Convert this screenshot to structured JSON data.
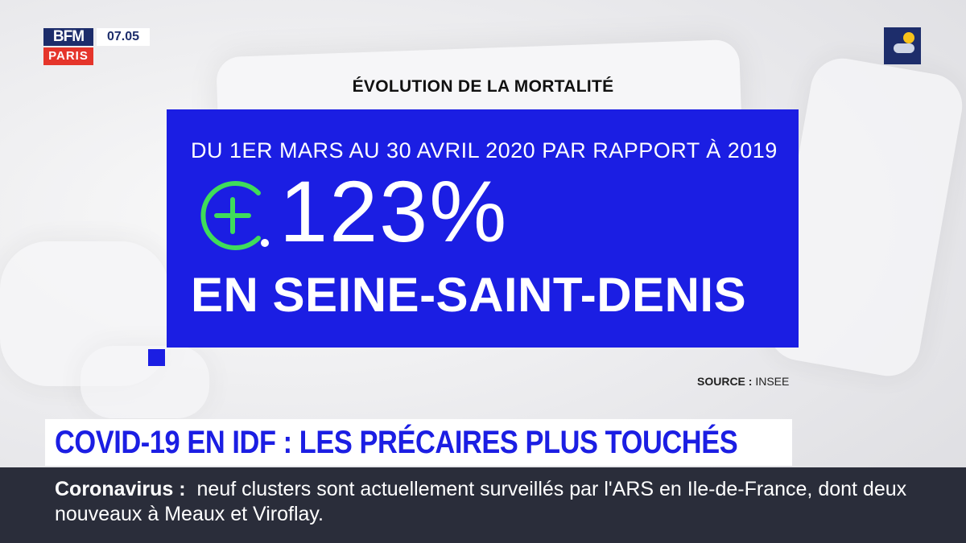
{
  "channel": {
    "logo_top": "BFM",
    "logo_bottom": "PARIS",
    "time": "07.05",
    "weather_icon": "weather-sun-cloud-icon"
  },
  "graphic": {
    "title": "ÉVOLUTION DE LA MORTALITÉ",
    "period": "DU 1ER MARS AU 30 AVRIL 2020 PAR RAPPORT À 2019",
    "value": "123%",
    "value_icon": "plus-circle-icon",
    "location": "EN SEINE-SAINT-DENIS",
    "source_label": "SOURCE :",
    "source_value": "INSEE",
    "colors": {
      "panel": "#1b1ee3",
      "accent": "#3fdc5a"
    }
  },
  "headline": {
    "text": "COVID-19 EN IDF : LES PRÉCAIRES PLUS TOUCHÉS"
  },
  "ticker": {
    "keyword": "Coronavirus :",
    "text": "neuf clusters sont actuellement surveillés par l'ARS en Ile-de-France, dont deux nouveaux à Meaux et Viroflay."
  }
}
